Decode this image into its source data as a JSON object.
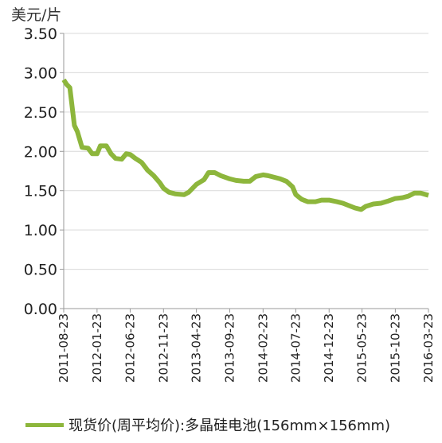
{
  "chart_data": {
    "type": "line",
    "title": "",
    "ylabel": "美元/片",
    "xlabel": "",
    "ylim": [
      0,
      3.5
    ],
    "yticks": [
      "0.00",
      "0.50",
      "1.00",
      "1.50",
      "2.00",
      "2.50",
      "3.00",
      "3.50"
    ],
    "xticks": [
      "2011-08-23",
      "2012-01-23",
      "2012-06-23",
      "2012-11-23",
      "2013-04-23",
      "2013-09-23",
      "2014-02-23",
      "2014-07-23",
      "2014-12-23",
      "2015-05-23",
      "2015-10-23",
      "2016-03-23"
    ],
    "grid": true,
    "legend_position": "bottom",
    "color": "#8DB63C",
    "series": [
      {
        "name": "现货价(周平均价):多晶硅电池(156mm×156mm)",
        "points": [
          [
            "2011-08-23",
            2.91
          ],
          [
            "2011-09-06",
            2.85
          ],
          [
            "2011-09-20",
            2.81
          ],
          [
            "2011-10-11",
            2.33
          ],
          [
            "2011-10-25",
            2.25
          ],
          [
            "2011-11-15",
            2.05
          ],
          [
            "2011-12-13",
            2.04
          ],
          [
            "2012-01-01",
            1.97
          ],
          [
            "2012-01-23",
            1.97
          ],
          [
            "2012-02-07",
            2.07
          ],
          [
            "2012-03-06",
            2.07
          ],
          [
            "2012-03-27",
            1.97
          ],
          [
            "2012-04-17",
            1.91
          ],
          [
            "2012-05-15",
            1.9
          ],
          [
            "2012-06-05",
            1.97
          ],
          [
            "2012-06-23",
            1.96
          ],
          [
            "2012-07-17",
            1.91
          ],
          [
            "2012-08-14",
            1.86
          ],
          [
            "2012-09-11",
            1.76
          ],
          [
            "2012-10-09",
            1.69
          ],
          [
            "2012-11-06",
            1.6
          ],
          [
            "2012-11-23",
            1.53
          ],
          [
            "2012-12-18",
            1.48
          ],
          [
            "2013-01-15",
            1.46
          ],
          [
            "2013-02-26",
            1.45
          ],
          [
            "2013-03-19",
            1.48
          ],
          [
            "2013-04-23",
            1.58
          ],
          [
            "2013-05-28",
            1.64
          ],
          [
            "2013-06-18",
            1.73
          ],
          [
            "2013-07-16",
            1.73
          ],
          [
            "2013-08-13",
            1.69
          ],
          [
            "2013-09-23",
            1.65
          ],
          [
            "2013-10-22",
            1.63
          ],
          [
            "2013-11-26",
            1.62
          ],
          [
            "2013-12-24",
            1.62
          ],
          [
            "2014-01-21",
            1.68
          ],
          [
            "2014-02-23",
            1.7
          ],
          [
            "2014-03-18",
            1.69
          ],
          [
            "2014-04-15",
            1.67
          ],
          [
            "2014-05-13",
            1.65
          ],
          [
            "2014-06-10",
            1.62
          ],
          [
            "2014-07-08",
            1.55
          ],
          [
            "2014-07-23",
            1.45
          ],
          [
            "2014-08-19",
            1.39
          ],
          [
            "2014-09-16",
            1.36
          ],
          [
            "2014-10-21",
            1.36
          ],
          [
            "2014-11-18",
            1.38
          ],
          [
            "2014-12-23",
            1.38
          ],
          [
            "2015-01-27",
            1.36
          ],
          [
            "2015-02-24",
            1.34
          ],
          [
            "2015-03-24",
            1.31
          ],
          [
            "2015-04-21",
            1.28
          ],
          [
            "2015-05-19",
            1.26
          ],
          [
            "2015-06-09",
            1.3
          ],
          [
            "2015-07-14",
            1.33
          ],
          [
            "2015-08-18",
            1.34
          ],
          [
            "2015-09-22",
            1.37
          ],
          [
            "2015-10-23",
            1.4
          ],
          [
            "2015-11-24",
            1.41
          ],
          [
            "2015-12-22",
            1.43
          ],
          [
            "2016-01-19",
            1.47
          ],
          [
            "2016-02-16",
            1.47
          ],
          [
            "2016-03-23",
            1.44
          ]
        ]
      }
    ]
  }
}
